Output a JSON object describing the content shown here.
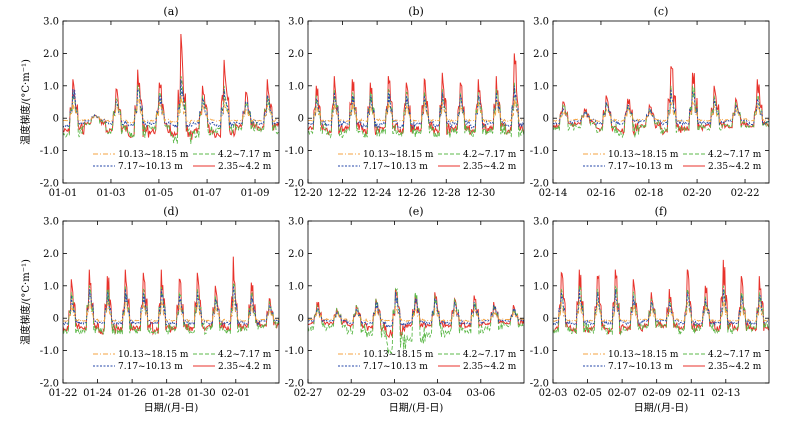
{
  "figure": {
    "ylabel": "温度梯度/(°C·m⁻¹)",
    "xlabel": "日期/(月-日)"
  },
  "legend_labels": [
    "10.13~18.15 m",
    "4.2~7.17 m",
    "7.17~10.13 m",
    "2.35~4.2 m"
  ],
  "series_colors": {
    "10.13~18.15 m": "#F4A340",
    "4.2~7.17 m": "#5BB848",
    "7.17~10.13 m": "#2346A8",
    "2.35~4.2 m": "#E8322B"
  },
  "chart_data": [
    {
      "type": "line",
      "title": "(a)",
      "x_ticks": [
        "01-01",
        "01-03",
        "01-05",
        "01-07",
        "01-09"
      ],
      "ylim": [
        -2.0,
        3.0
      ],
      "y_ticks": [
        "3.0",
        "2.0",
        "1.0",
        "0",
        "-1.0",
        "-2.0"
      ],
      "series": [
        {
          "name": "2.35~4.2 m",
          "daily_peak": [
            1.2,
            0.1,
            0.9,
            1.5,
            1.1,
            2.6,
            1.0,
            1.8,
            0.8,
            1.2
          ],
          "daily_min": [
            -0.5,
            -0.2,
            -0.5,
            -0.6,
            -0.5,
            -0.7,
            -0.5,
            -0.6,
            -0.3,
            -0.4
          ]
        },
        {
          "name": "4.2~7.17 m",
          "daily_peak": [
            0.8,
            0.1,
            0.6,
            1.0,
            0.8,
            1.3,
            0.7,
            1.0,
            0.5,
            0.7
          ],
          "daily_min": [
            -0.6,
            -0.2,
            -0.5,
            -0.7,
            -0.4,
            -0.8,
            -0.6,
            -0.5,
            -0.4,
            -0.5
          ]
        },
        {
          "name": "7.17~10.13 m",
          "daily_peak": [
            0.9,
            0.1,
            0.5,
            0.9,
            0.7,
            1.2,
            0.6,
            0.9,
            0.5,
            0.7
          ],
          "daily_min": [
            -0.3,
            -0.1,
            -0.2,
            -0.3,
            -0.2,
            -0.3,
            -0.2,
            -0.3,
            -0.2,
            -0.2
          ]
        },
        {
          "name": "10.13~18.15 m",
          "daily_peak": [
            0.5,
            0.05,
            0.4,
            0.6,
            0.5,
            0.7,
            0.4,
            0.6,
            0.3,
            0.4
          ],
          "daily_min": [
            -0.1,
            -0.05,
            -0.1,
            -0.15,
            -0.1,
            -0.15,
            -0.1,
            -0.1,
            -0.1,
            -0.1
          ]
        }
      ]
    },
    {
      "type": "line",
      "title": "(b)",
      "x_ticks": [
        "12-20",
        "12-22",
        "12-24",
        "12-26",
        "12-28",
        "12-30"
      ],
      "ylim": [
        -2.0,
        3.0
      ],
      "y_ticks": [
        "3.0",
        "2.0",
        "1.0",
        "0",
        "-1.0",
        "-2.0"
      ],
      "series": [
        {
          "name": "2.35~4.2 m",
          "daily_peak": [
            1.0,
            1.3,
            1.2,
            1.1,
            1.3,
            1.1,
            1.2,
            1.4,
            1.1,
            1.2,
            1.3,
            2.0
          ],
          "daily_min": [
            -0.4,
            -0.5,
            -0.4,
            -0.5,
            -0.4,
            -0.5,
            -0.4,
            -0.5,
            -0.4,
            -0.5,
            -0.4,
            -0.5
          ]
        },
        {
          "name": "4.2~7.17 m",
          "daily_peak": [
            0.7,
            0.9,
            0.8,
            0.8,
            0.9,
            0.8,
            0.8,
            0.9,
            0.8,
            0.8,
            0.9,
            1.1
          ],
          "daily_min": [
            -0.5,
            -0.6,
            -0.5,
            -0.6,
            -0.5,
            -0.6,
            -0.5,
            -0.6,
            -0.5,
            -0.6,
            -0.5,
            -0.6
          ]
        },
        {
          "name": "7.17~10.13 m",
          "daily_peak": [
            0.6,
            0.8,
            0.7,
            0.7,
            0.8,
            0.7,
            0.7,
            0.8,
            0.7,
            0.7,
            0.8,
            1.0
          ],
          "daily_min": [
            -0.2,
            -0.3,
            -0.2,
            -0.3,
            -0.2,
            -0.3,
            -0.2,
            -0.3,
            -0.2,
            -0.3,
            -0.2,
            -0.3
          ]
        },
        {
          "name": "10.13~18.15 m",
          "daily_peak": [
            0.4,
            0.5,
            0.5,
            0.4,
            0.5,
            0.4,
            0.5,
            0.5,
            0.4,
            0.5,
            0.5,
            0.6
          ],
          "daily_min": [
            -0.1,
            -0.1,
            -0.1,
            -0.1,
            -0.1,
            -0.1,
            -0.1,
            -0.1,
            -0.1,
            -0.1,
            -0.1,
            -0.1
          ]
        }
      ]
    },
    {
      "type": "line",
      "title": "(c)",
      "x_ticks": [
        "02-14",
        "02-16",
        "02-18",
        "02-20",
        "02-22"
      ],
      "ylim": [
        -2.0,
        3.0
      ],
      "y_ticks": [
        "3.0",
        "2.0",
        "1.0",
        "0",
        "-1.0",
        "-2.0"
      ],
      "series": [
        {
          "name": "2.35~4.2 m",
          "daily_peak": [
            0.5,
            0.3,
            0.7,
            0.6,
            0.4,
            1.6,
            1.4,
            1.0,
            0.6,
            1.2
          ],
          "daily_min": [
            -0.3,
            -0.2,
            -0.4,
            -0.5,
            -0.3,
            -0.5,
            -0.4,
            -0.3,
            -0.3,
            -0.3
          ]
        },
        {
          "name": "4.2~7.17 m",
          "daily_peak": [
            0.4,
            0.2,
            0.5,
            0.4,
            0.3,
            1.0,
            1.0,
            0.7,
            0.5,
            0.7
          ],
          "daily_min": [
            -0.4,
            -0.3,
            -0.5,
            -0.6,
            -0.3,
            -0.5,
            -0.4,
            -0.4,
            -0.3,
            -0.3
          ]
        },
        {
          "name": "7.17~10.13 m",
          "daily_peak": [
            0.3,
            0.2,
            0.5,
            0.4,
            0.3,
            0.9,
            0.8,
            0.6,
            0.4,
            0.6
          ],
          "daily_min": [
            -0.2,
            -0.1,
            -0.2,
            -0.2,
            -0.1,
            -0.2,
            -0.2,
            -0.2,
            -0.1,
            -0.2
          ]
        },
        {
          "name": "10.13~18.15 m",
          "daily_peak": [
            0.2,
            0.1,
            0.3,
            0.3,
            0.2,
            0.5,
            0.5,
            0.4,
            0.3,
            0.4
          ],
          "daily_min": [
            -0.1,
            -0.05,
            -0.1,
            -0.1,
            -0.05,
            -0.1,
            -0.1,
            -0.1,
            -0.05,
            -0.1
          ]
        }
      ]
    },
    {
      "type": "line",
      "title": "(d)",
      "x_ticks": [
        "01-22",
        "01-24",
        "01-26",
        "01-28",
        "01-30",
        "02-01"
      ],
      "ylim": [
        -2.0,
        3.0
      ],
      "y_ticks": [
        "3.0",
        "2.0",
        "1.0",
        "0",
        "-1.0",
        "-2.0"
      ],
      "series": [
        {
          "name": "2.35~4.2 m",
          "daily_peak": [
            1.2,
            1.5,
            1.3,
            1.5,
            1.4,
            1.5,
            1.2,
            1.4,
            1.0,
            1.9,
            1.1,
            0.6
          ],
          "daily_min": [
            -0.4,
            -0.4,
            -0.5,
            -0.4,
            -0.4,
            -0.5,
            -0.4,
            -0.4,
            -0.3,
            -0.4,
            -0.3,
            -0.3
          ]
        },
        {
          "name": "4.2~7.17 m",
          "daily_peak": [
            0.8,
            1.0,
            0.9,
            1.0,
            0.9,
            1.0,
            0.8,
            0.9,
            0.7,
            1.1,
            0.8,
            0.5
          ],
          "daily_min": [
            -0.5,
            -0.5,
            -0.5,
            -0.5,
            -0.5,
            -0.5,
            -0.4,
            -0.5,
            -0.4,
            -0.5,
            -0.4,
            -0.3
          ]
        },
        {
          "name": "7.17~10.13 m",
          "daily_peak": [
            0.7,
            0.9,
            0.8,
            0.9,
            0.8,
            0.9,
            0.7,
            0.8,
            0.6,
            1.0,
            0.7,
            0.4
          ],
          "daily_min": [
            -0.2,
            -0.2,
            -0.2,
            -0.2,
            -0.2,
            -0.2,
            -0.2,
            -0.2,
            -0.2,
            -0.2,
            -0.2,
            -0.1
          ]
        },
        {
          "name": "10.13~18.15 m",
          "daily_peak": [
            0.4,
            0.5,
            0.5,
            0.5,
            0.5,
            0.5,
            0.4,
            0.5,
            0.4,
            0.6,
            0.4,
            0.3
          ],
          "daily_min": [
            -0.1,
            -0.1,
            -0.1,
            -0.1,
            -0.1,
            -0.1,
            -0.1,
            -0.1,
            -0.1,
            -0.1,
            -0.1,
            -0.05
          ]
        }
      ]
    },
    {
      "type": "line",
      "title": "(e)",
      "x_ticks": [
        "02-27",
        "02-29",
        "03-02",
        "03-04",
        "03-06"
      ],
      "ylim": [
        -2.0,
        3.0
      ],
      "y_ticks": [
        "3.0",
        "2.0",
        "1.0",
        "0",
        "-1.0",
        "-2.0"
      ],
      "series": [
        {
          "name": "2.35~4.2 m",
          "daily_peak": [
            0.5,
            0.3,
            0.4,
            0.6,
            0.9,
            0.7,
            0.8,
            0.6,
            0.7,
            0.5,
            0.4
          ],
          "daily_min": [
            -0.2,
            -0.2,
            -0.3,
            -0.4,
            -0.6,
            -0.3,
            -0.3,
            -0.3,
            -0.3,
            -0.2,
            -0.2
          ]
        },
        {
          "name": "4.2~7.17 m",
          "daily_peak": [
            0.4,
            0.3,
            0.4,
            0.6,
            0.9,
            0.8,
            0.7,
            0.6,
            0.5,
            0.4,
            0.3
          ],
          "daily_min": [
            -0.4,
            -0.3,
            -0.5,
            -0.6,
            -1.1,
            -0.8,
            -0.6,
            -0.5,
            -0.5,
            -0.4,
            -0.3
          ]
        },
        {
          "name": "7.17~10.13 m",
          "daily_peak": [
            0.3,
            0.2,
            0.3,
            0.5,
            0.8,
            0.6,
            0.6,
            0.5,
            0.5,
            0.4,
            0.3
          ],
          "daily_min": [
            -0.1,
            -0.1,
            -0.2,
            -0.2,
            -0.3,
            -0.2,
            -0.2,
            -0.2,
            -0.2,
            -0.1,
            -0.1
          ]
        },
        {
          "name": "10.13~18.15 m",
          "daily_peak": [
            0.2,
            0.15,
            0.2,
            0.3,
            0.4,
            0.3,
            0.3,
            0.3,
            0.3,
            0.2,
            0.2
          ],
          "daily_min": [
            -0.05,
            -0.05,
            -0.1,
            -0.1,
            -0.1,
            -0.1,
            -0.1,
            -0.1,
            -0.1,
            -0.05,
            -0.05
          ]
        }
      ]
    },
    {
      "type": "line",
      "title": "(f)",
      "x_ticks": [
        "02-03",
        "02-05",
        "02-07",
        "02-09",
        "02-11",
        "02-13"
      ],
      "ylim": [
        -2.0,
        3.0
      ],
      "y_ticks": [
        "3.0",
        "2.0",
        "1.0",
        "0",
        "-1.0",
        "-2.0"
      ],
      "series": [
        {
          "name": "2.35~4.2 m",
          "daily_peak": [
            1.4,
            1.5,
            1.3,
            1.5,
            1.2,
            0.8,
            0.9,
            1.5,
            1.0,
            1.8,
            1.3,
            1.3
          ],
          "daily_min": [
            -0.4,
            -0.5,
            -0.4,
            -0.5,
            -0.4,
            -0.3,
            -0.3,
            -0.4,
            -0.3,
            -0.4,
            -0.4,
            -0.4
          ]
        },
        {
          "name": "4.2~7.17 m",
          "daily_peak": [
            0.9,
            1.0,
            0.9,
            1.0,
            0.8,
            0.6,
            0.6,
            0.9,
            0.7,
            1.0,
            0.8,
            0.8
          ],
          "daily_min": [
            -0.5,
            -0.5,
            -0.5,
            -0.5,
            -0.4,
            -0.3,
            -0.3,
            -0.5,
            -0.4,
            -0.5,
            -0.4,
            -0.4
          ]
        },
        {
          "name": "7.17~10.13 m",
          "daily_peak": [
            0.8,
            0.9,
            0.8,
            0.9,
            0.7,
            0.5,
            0.5,
            0.8,
            0.6,
            0.9,
            0.7,
            0.7
          ],
          "daily_min": [
            -0.2,
            -0.2,
            -0.2,
            -0.2,
            -0.2,
            -0.1,
            -0.1,
            -0.2,
            -0.2,
            -0.2,
            -0.2,
            -0.2
          ]
        },
        {
          "name": "10.13~18.15 m",
          "daily_peak": [
            0.5,
            0.5,
            0.5,
            0.5,
            0.4,
            0.3,
            0.3,
            0.5,
            0.4,
            0.5,
            0.4,
            0.4
          ],
          "daily_min": [
            -0.1,
            -0.1,
            -0.1,
            -0.1,
            -0.1,
            -0.05,
            -0.05,
            -0.1,
            -0.1,
            -0.1,
            -0.1,
            -0.1
          ]
        }
      ]
    }
  ]
}
